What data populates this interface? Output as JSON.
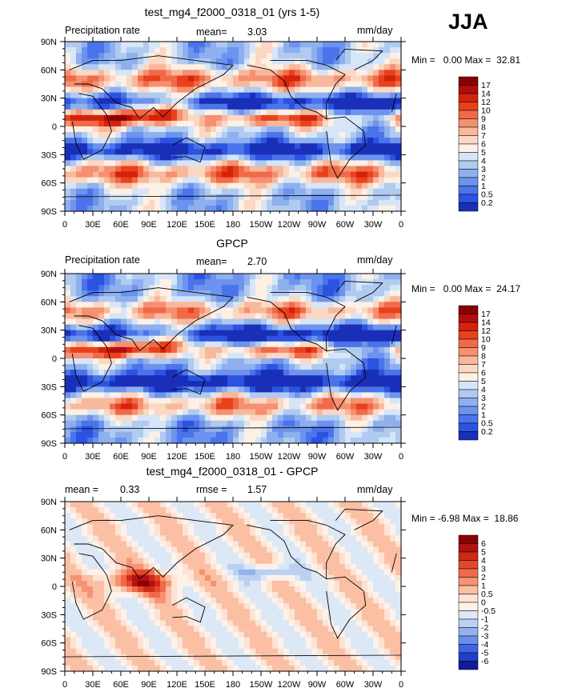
{
  "season": "JJA",
  "chart_data": [
    {
      "type": "heatmap",
      "title": "test_mg4_f2000_0318_01 (yrs 1-5)",
      "left_label": "Precipitation rate",
      "stat1_label": "mean=",
      "stat1_value": "3.03",
      "units": "mm/day",
      "min_label": "Min =",
      "min_value": "0.00",
      "max_label": "Max =",
      "max_value": "32.81",
      "lat_ticks": [
        "90N",
        "60N",
        "30N",
        "0",
        "30S",
        "60S",
        "90S"
      ],
      "lon_ticks": [
        "0",
        "30E",
        "60E",
        "90E",
        "120E",
        "150E",
        "180",
        "150W",
        "120W",
        "90W",
        "60W",
        "30W",
        "0"
      ],
      "legend_levels": [
        "17",
        "14",
        "12",
        "10",
        "9",
        "8",
        "7",
        "6",
        "5",
        "4",
        "3",
        "2",
        "1",
        "0.5",
        "0.2"
      ],
      "legend_colors": [
        "#8b0000",
        "#b30d0d",
        "#d4230c",
        "#e8411c",
        "#f06a4a",
        "#f59070",
        "#f8b89c",
        "#fbd8c4",
        "#fdf0e4",
        "#d6e6f8",
        "#b0caf0",
        "#8fb0ee",
        "#6c93ee",
        "#4b73ea",
        "#2b52e0",
        "#1a2fb8"
      ],
      "field": "model"
    },
    {
      "type": "heatmap",
      "title": "GPCP",
      "left_label": "Precipitation rate",
      "stat1_label": "mean=",
      "stat1_value": "2.70",
      "units": "mm/day",
      "min_label": "Min =",
      "min_value": "0.00",
      "max_label": "Max =",
      "max_value": "24.17",
      "lat_ticks": [
        "90N",
        "60N",
        "30N",
        "0",
        "30S",
        "60S",
        "90S"
      ],
      "lon_ticks": [
        "0",
        "30E",
        "60E",
        "90E",
        "120E",
        "150E",
        "180",
        "150W",
        "120W",
        "90W",
        "60W",
        "30W",
        "0"
      ],
      "legend_levels": [
        "17",
        "14",
        "12",
        "10",
        "9",
        "8",
        "7",
        "6",
        "5",
        "4",
        "3",
        "2",
        "1",
        "0.5",
        "0.2"
      ],
      "legend_colors": [
        "#8b0000",
        "#b30d0d",
        "#d4230c",
        "#e8411c",
        "#f06a4a",
        "#f59070",
        "#f8b89c",
        "#fbd8c4",
        "#fdf0e4",
        "#d6e6f8",
        "#b0caf0",
        "#8fb0ee",
        "#6c93ee",
        "#4b73ea",
        "#2b52e0",
        "#1a2fb8"
      ],
      "field": "obs"
    },
    {
      "type": "heatmap",
      "title": "test_mg4_f2000_0318_01 - GPCP",
      "stat1_label": "mean =",
      "stat1_value": "0.33",
      "stat2_label": "rmse =",
      "stat2_value": "1.57",
      "units": "mm/day",
      "min_label": "Min =",
      "min_value": "-6.98",
      "max_label": "Max =",
      "max_value": "18.86",
      "lat_ticks": [
        "90N",
        "60N",
        "30N",
        "0",
        "30S",
        "60S",
        "90S"
      ],
      "lon_ticks": [
        "0",
        "30E",
        "60E",
        "90E",
        "120E",
        "150E",
        "180",
        "150W",
        "120W",
        "90W",
        "60W",
        "30W",
        "0"
      ],
      "legend_levels": [
        "6",
        "5",
        "4",
        "3",
        "2",
        "1",
        "0.5",
        "0",
        "-0.5",
        "-1",
        "-2",
        "-3",
        "-4",
        "-5",
        "-6"
      ],
      "legend_colors": [
        "#8b0000",
        "#b11212",
        "#cf2a16",
        "#e4482a",
        "#f06a4a",
        "#f69372",
        "#fbbfa4",
        "#fde3d4",
        "#fdf2ea",
        "#dde8f6",
        "#bcd0f2",
        "#93b2ee",
        "#6a8fea",
        "#3f64e4",
        "#1f3fc8",
        "#101d98"
      ],
      "field": "diff"
    }
  ]
}
